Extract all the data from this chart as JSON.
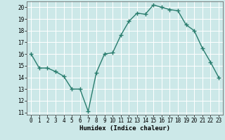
{
  "x": [
    0,
    1,
    2,
    3,
    4,
    5,
    6,
    7,
    8,
    9,
    10,
    11,
    12,
    13,
    14,
    15,
    16,
    17,
    18,
    19,
    20,
    21,
    22,
    23
  ],
  "y": [
    16,
    14.8,
    14.8,
    14.5,
    14.1,
    13.0,
    13.0,
    11.1,
    14.4,
    16.0,
    16.1,
    17.6,
    18.8,
    19.5,
    19.4,
    20.2,
    20.0,
    19.8,
    19.7,
    18.5,
    18.0,
    16.5,
    15.3,
    14.0
  ],
  "xlabel": "Humidex (Indice chaleur)",
  "xlim": [
    -0.5,
    23.5
  ],
  "ylim": [
    10.8,
    20.5
  ],
  "yticks": [
    11,
    12,
    13,
    14,
    15,
    16,
    17,
    18,
    19,
    20
  ],
  "xticks": [
    0,
    1,
    2,
    3,
    4,
    5,
    6,
    7,
    8,
    9,
    10,
    11,
    12,
    13,
    14,
    15,
    16,
    17,
    18,
    19,
    20,
    21,
    22,
    23
  ],
  "line_color": "#2a7d6e",
  "bg_color": "#cce8e8",
  "grid_color": "#ffffff",
  "marker": "+",
  "marker_size": 4,
  "line_width": 1.0,
  "label_fontsize": 6.5,
  "tick_fontsize": 5.5
}
